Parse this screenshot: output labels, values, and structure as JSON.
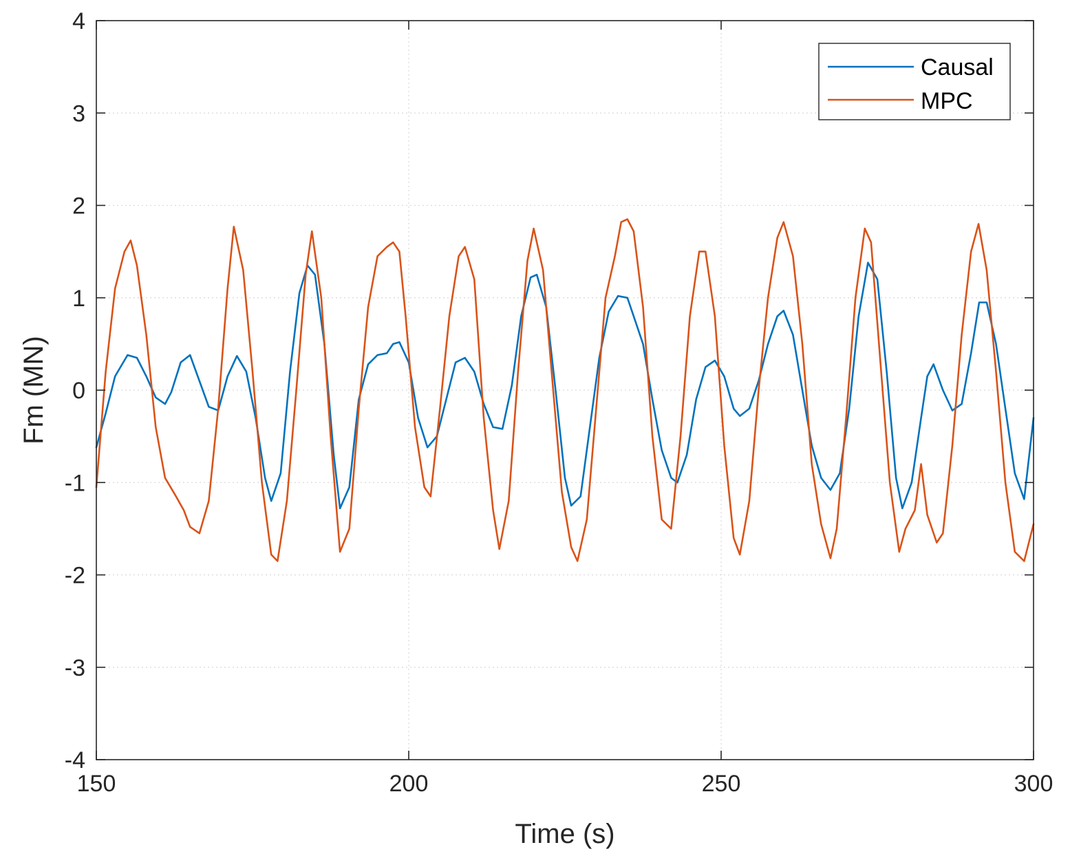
{
  "chart_data": {
    "type": "line",
    "title": "",
    "xlabel": "Time (s)",
    "ylabel": "Fm (MN)",
    "xlim": [
      150,
      300
    ],
    "ylim": [
      -4,
      4
    ],
    "xticks": [
      150,
      200,
      250,
      300
    ],
    "xtick_labels": [
      "150",
      "200",
      "250",
      "300"
    ],
    "yticks": [
      -4,
      -3,
      -2,
      -1,
      0,
      1,
      2,
      3,
      4
    ],
    "ytick_labels": [
      "-4",
      "-3",
      "-2",
      "-1",
      "0",
      "1",
      "2",
      "3",
      "4"
    ],
    "grid": true,
    "legend_position": "top-right",
    "series": [
      {
        "name": "Causal",
        "color": "#0072BD",
        "x": [
          150,
          151.5,
          153,
          155,
          156.5,
          158,
          159.5,
          161,
          162,
          163.5,
          165,
          166.5,
          168,
          169.5,
          171,
          172.5,
          174,
          175.5,
          177,
          178,
          179.5,
          181,
          182.5,
          183.8,
          185,
          186.5,
          188,
          189,
          190.5,
          192,
          193.5,
          195,
          196.5,
          197.5,
          198.5,
          200,
          201.5,
          203,
          204.5,
          206,
          207.5,
          209,
          210.5,
          212,
          213.5,
          215,
          216.5,
          218,
          219.5,
          220.5,
          222,
          223.5,
          225,
          226,
          227.5,
          229,
          230.5,
          232,
          233.5,
          235,
          236,
          237.5,
          239,
          240.5,
          242,
          243,
          244.5,
          246,
          247.5,
          249,
          250.5,
          252,
          253,
          254.5,
          256,
          257.5,
          259,
          260,
          261.5,
          263,
          264.5,
          266,
          267.5,
          269,
          270.5,
          272,
          273.5,
          275,
          276.5,
          278,
          279,
          280.5,
          282,
          283,
          284,
          285.5,
          287,
          288.5,
          290,
          291.3,
          292.5,
          294,
          295.5,
          297,
          298.5,
          300
        ],
        "values": [
          -0.62,
          -0.25,
          0.15,
          0.38,
          0.35,
          0.15,
          -0.08,
          -0.15,
          -0.02,
          0.3,
          0.38,
          0.1,
          -0.18,
          -0.22,
          0.15,
          0.37,
          0.2,
          -0.3,
          -0.95,
          -1.2,
          -0.9,
          0.2,
          1.05,
          1.35,
          1.25,
          0.5,
          -0.7,
          -1.28,
          -1.05,
          -0.1,
          0.28,
          0.38,
          0.4,
          0.5,
          0.52,
          0.3,
          -0.3,
          -0.62,
          -0.5,
          -0.1,
          0.3,
          0.35,
          0.2,
          -0.15,
          -0.4,
          -0.42,
          0.05,
          0.8,
          1.22,
          1.25,
          0.9,
          0.0,
          -0.95,
          -1.25,
          -1.15,
          -0.4,
          0.35,
          0.85,
          1.02,
          1.0,
          0.8,
          0.5,
          -0.1,
          -0.65,
          -0.95,
          -1.0,
          -0.7,
          -0.1,
          0.25,
          0.32,
          0.15,
          -0.2,
          -0.28,
          -0.2,
          0.1,
          0.5,
          0.8,
          0.86,
          0.6,
          0.0,
          -0.6,
          -0.95,
          -1.08,
          -0.9,
          -0.2,
          0.8,
          1.38,
          1.2,
          0.2,
          -0.95,
          -1.28,
          -1.0,
          -0.3,
          0.15,
          0.28,
          0.0,
          -0.22,
          -0.15,
          0.4,
          0.95,
          0.95,
          0.5,
          -0.2,
          -0.9,
          -1.18,
          -0.3
        ]
      },
      {
        "name": "MPC",
        "color": "#D95319",
        "x": [
          150,
          151.5,
          153,
          154.5,
          155.5,
          156.5,
          158,
          159.5,
          161,
          162.5,
          164,
          165,
          166.5,
          168,
          169.5,
          171,
          172,
          173.5,
          175,
          176.5,
          178,
          179,
          180.5,
          182,
          183.5,
          184.5,
          186,
          187.5,
          189,
          190.5,
          192,
          193.5,
          195,
          196.5,
          197.5,
          198.5,
          199.5,
          201,
          202.5,
          203.5,
          205,
          206.5,
          208,
          209,
          210.5,
          212,
          213.5,
          214.5,
          216,
          217.5,
          219,
          220,
          221.5,
          223,
          224.5,
          226,
          227,
          228.5,
          230,
          231.5,
          233,
          234,
          235,
          236,
          237.5,
          239,
          240.5,
          242,
          243.5,
          245,
          246.5,
          247.5,
          249,
          250.5,
          252,
          253,
          254.5,
          256,
          257.5,
          259,
          260,
          261.5,
          263,
          264.5,
          266,
          267.5,
          268.5,
          270,
          271.5,
          273,
          274,
          275.5,
          277,
          278.5,
          279.5,
          281,
          282,
          283,
          284.5,
          285.5,
          287,
          288.5,
          290,
          291.2,
          292.5,
          294,
          295.5,
          297,
          298.5,
          300
        ],
        "values": [
          -1.05,
          0.2,
          1.1,
          1.5,
          1.62,
          1.35,
          0.6,
          -0.4,
          -0.95,
          -1.12,
          -1.3,
          -1.48,
          -1.55,
          -1.2,
          -0.2,
          1.1,
          1.77,
          1.3,
          0.2,
          -1.0,
          -1.78,
          -1.85,
          -1.2,
          0.0,
          1.25,
          1.72,
          1.0,
          -0.5,
          -1.75,
          -1.5,
          -0.2,
          0.9,
          1.45,
          1.55,
          1.6,
          1.5,
          0.8,
          -0.4,
          -1.05,
          -1.15,
          -0.2,
          0.8,
          1.45,
          1.55,
          1.2,
          -0.3,
          -1.3,
          -1.72,
          -1.2,
          0.2,
          1.4,
          1.75,
          1.3,
          0.1,
          -1.1,
          -1.7,
          -1.85,
          -1.4,
          -0.2,
          1.0,
          1.45,
          1.82,
          1.85,
          1.72,
          0.9,
          -0.5,
          -1.4,
          -1.5,
          -0.5,
          0.8,
          1.5,
          1.5,
          0.8,
          -0.6,
          -1.6,
          -1.78,
          -1.2,
          0.0,
          1.0,
          1.65,
          1.82,
          1.45,
          0.5,
          -0.8,
          -1.45,
          -1.82,
          -1.5,
          -0.3,
          1.0,
          1.75,
          1.6,
          0.3,
          -1.0,
          -1.75,
          -1.5,
          -1.3,
          -0.8,
          -1.35,
          -1.65,
          -1.55,
          -0.6,
          0.6,
          1.5,
          1.8,
          1.3,
          0.2,
          -1.0,
          -1.75,
          -1.85,
          -1.45
        ]
      }
    ]
  }
}
